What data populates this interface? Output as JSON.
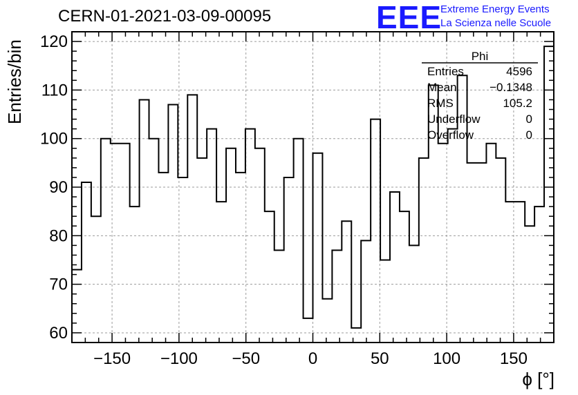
{
  "header": {
    "run_title": "CERN-01-2021-03-09-00095",
    "logo_text": "EEE",
    "logo_line1": "Extreme Energy Events",
    "logo_line2": "La Scienza nelle Scuole",
    "logo_color": "#1a1aff"
  },
  "stats": {
    "title": "Phi",
    "rows": [
      {
        "key": "Entries",
        "value": "4596"
      },
      {
        "key": "Mean",
        "value": "−0.1348"
      },
      {
        "key": "RMS",
        "value": "105.2"
      },
      {
        "key": "Underflow",
        "value": "0"
      },
      {
        "key": "Overflow",
        "value": "0"
      }
    ]
  },
  "chart_data": {
    "type": "histogram-step",
    "xlabel": "ϕ [°]",
    "ylabel": "Entries/bin",
    "xlim": [
      -180,
      180
    ],
    "ylim": [
      58,
      122
    ],
    "bin_width": 7.2,
    "grid": true,
    "line_color": "#000000",
    "x_ticks": [
      -150,
      -100,
      -50,
      0,
      50,
      100,
      150
    ],
    "x_tick_labels": [
      "−150",
      "−100",
      "−50",
      "0",
      "50",
      "100",
      "150"
    ],
    "y_ticks": [
      60,
      70,
      80,
      90,
      100,
      110,
      120
    ],
    "y_tick_labels": [
      "60",
      "70",
      "80",
      "90",
      "100",
      "110",
      "120"
    ],
    "values": [
      73,
      91,
      84,
      100,
      99,
      99,
      86,
      108,
      100,
      93,
      107,
      92,
      109,
      96,
      102,
      87,
      98,
      93,
      102,
      98,
      85,
      77,
      92,
      100,
      63,
      97,
      67,
      77,
      83,
      61,
      79,
      104,
      75,
      89,
      85,
      78,
      96,
      111,
      99,
      102,
      113,
      95,
      95,
      99,
      96,
      87,
      87,
      82,
      86,
      119
    ]
  }
}
